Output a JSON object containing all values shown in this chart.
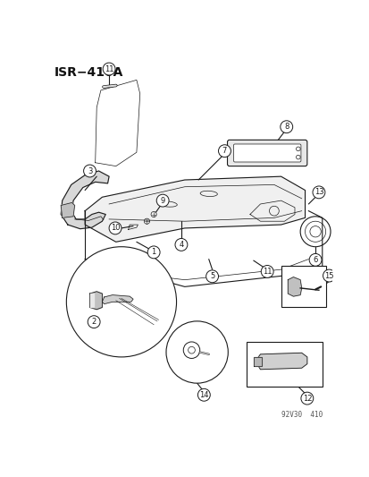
{
  "title": "ISR−410A",
  "watermark": "92V30  410",
  "background_color": "#ffffff",
  "line_color": "#1a1a1a",
  "fig_width": 4.14,
  "fig_height": 5.33,
  "dpi": 100,
  "label_r": 0.02,
  "label_fs": 6.0
}
